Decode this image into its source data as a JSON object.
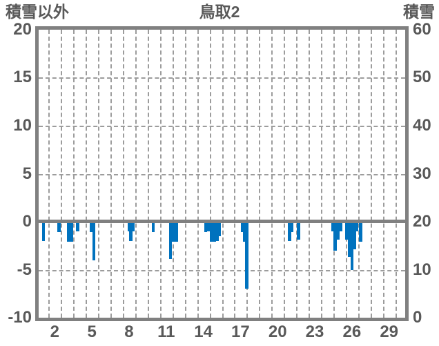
{
  "header": {
    "left_axis_title": "積雪以外",
    "title": "鳥取2",
    "right_axis_title": "積雪"
  },
  "colors": {
    "background": "#ffffff",
    "frame": "#808080",
    "grid": "#9c9c9c",
    "text": "#595959",
    "bar": "#0072be"
  },
  "chart_data": {
    "type": "bar",
    "title": "鳥取2",
    "left_axis": {
      "label": "積雪以外",
      "min": -10,
      "max": 20,
      "ticks": [
        20,
        15,
        10,
        5,
        0,
        -5,
        -10
      ]
    },
    "right_axis": {
      "label": "積雪",
      "min": 0,
      "max": 60,
      "ticks": [
        60,
        50,
        40,
        30,
        20,
        10,
        0
      ]
    },
    "x_axis": {
      "domain": [
        0.7,
        30.3
      ],
      "tick_label_days": [
        2,
        5,
        8,
        11,
        14,
        17,
        20,
        23,
        26,
        29
      ],
      "grid_first": 1.5,
      "grid_last": 29.5,
      "grid_step": 1
    },
    "hgrid_dashed_values": [
      15,
      10,
      5,
      -5
    ],
    "zero_value": 0,
    "grid_on": true,
    "bar_width_days": 0.25,
    "bars": [
      {
        "day": 1.1,
        "value": -2.0
      },
      {
        "day": 2.35,
        "value": -1.1
      },
      {
        "day": 3.1,
        "value": -2.1
      },
      {
        "day": 3.35,
        "value": -2.1
      },
      {
        "day": 3.85,
        "value": -1.0
      },
      {
        "day": 4.95,
        "value": -1.05
      },
      {
        "day": 5.15,
        "value": -4.0
      },
      {
        "day": 8.0,
        "value": -1.0
      },
      {
        "day": 8.15,
        "value": -2.0
      },
      {
        "day": 8.35,
        "value": -1.0
      },
      {
        "day": 9.95,
        "value": -1.05
      },
      {
        "day": 11.35,
        "value": -3.9
      },
      {
        "day": 11.6,
        "value": -2.1
      },
      {
        "day": 11.85,
        "value": -2.1
      },
      {
        "day": 14.2,
        "value": -1.1
      },
      {
        "day": 14.45,
        "value": -1.0
      },
      {
        "day": 14.65,
        "value": -2.1
      },
      {
        "day": 14.9,
        "value": -2.1
      },
      {
        "day": 15.1,
        "value": -2.0
      },
      {
        "day": 15.3,
        "value": -1.5
      },
      {
        "day": 17.15,
        "value": -1.1
      },
      {
        "day": 17.35,
        "value": -2.1
      },
      {
        "day": 17.5,
        "value": -7.0
      },
      {
        "day": 20.95,
        "value": -2.0
      },
      {
        "day": 21.15,
        "value": -1.05
      },
      {
        "day": 21.7,
        "value": -1.9
      },
      {
        "day": 24.45,
        "value": -1.0
      },
      {
        "day": 24.65,
        "value": -3.0
      },
      {
        "day": 24.9,
        "value": -1.9
      },
      {
        "day": 25.1,
        "value": -1.0
      },
      {
        "day": 25.55,
        "value": -1.9
      },
      {
        "day": 25.8,
        "value": -3.7
      },
      {
        "day": 26.0,
        "value": -5.05
      },
      {
        "day": 26.2,
        "value": -2.9
      },
      {
        "day": 26.4,
        "value": -1.0
      },
      {
        "day": 26.7,
        "value": -2.1
      }
    ]
  }
}
